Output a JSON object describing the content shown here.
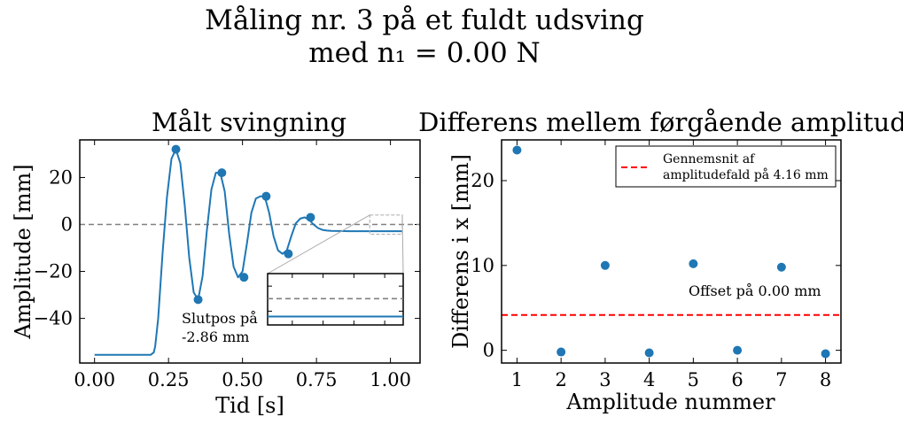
{
  "figure": {
    "title_line1": "Måling nr. 3 på et fuldt udsving",
    "title_line2": "med n₁ = 0.00 N"
  },
  "chart_data": [
    {
      "type": "line",
      "title": "Målt svingning",
      "xlabel": "Tid [s]",
      "ylabel": "Amplitude [mm]",
      "xlim": [
        -0.05,
        1.1
      ],
      "ylim": [
        -59,
        36
      ],
      "xticks": [
        0.0,
        0.25,
        0.5,
        0.75,
        1.0
      ],
      "xtick_labels": [
        "0.00",
        "0.25",
        "0.50",
        "0.75",
        "1.00"
      ],
      "yticks": [
        20,
        0,
        -20,
        -40
      ],
      "ytick_labels": [
        "20",
        "0",
        "−20",
        "−40"
      ],
      "reference_line": {
        "y": 0,
        "style": "dashed",
        "color": "#808080"
      },
      "line_color": "#1f77b4",
      "curve": {
        "x": [
          0.0,
          0.19,
          0.2,
          0.205,
          0.215,
          0.23,
          0.245,
          0.26,
          0.275,
          0.29,
          0.305,
          0.32,
          0.335,
          0.35,
          0.365,
          0.38,
          0.395,
          0.41,
          0.425,
          0.44,
          0.455,
          0.47,
          0.485,
          0.5,
          0.515,
          0.53,
          0.545,
          0.56,
          0.575,
          0.59,
          0.605,
          0.62,
          0.635,
          0.65,
          0.665,
          0.68,
          0.695,
          0.71,
          0.725,
          0.74,
          0.755,
          0.77,
          0.785,
          0.8,
          0.83,
          0.86,
          0.9,
          0.95,
          1.0,
          1.04
        ],
        "y": [
          -55.5,
          -55.5,
          -54.5,
          -52,
          -40,
          -12,
          12,
          28,
          32,
          26,
          8,
          -14,
          -29,
          -32,
          -22,
          -2,
          15,
          22,
          22,
          14,
          -4,
          -18,
          -22.5,
          -20,
          -8,
          5,
          11,
          12,
          12,
          5,
          -5,
          -11,
          -12.5,
          -11,
          -5,
          0.5,
          2.5,
          3,
          2,
          0,
          -1.5,
          -2.3,
          -2.6,
          -2.7,
          -2.8,
          -2.85,
          -2.86,
          -2.86,
          -2.86,
          -2.86
        ]
      },
      "peaks": {
        "x": [
          0.275,
          0.35,
          0.43,
          0.505,
          0.58,
          0.655,
          0.73
        ],
        "y": [
          32,
          -32,
          22,
          -22.5,
          12,
          -12.5,
          3
        ]
      },
      "annotation": [
        "Slutpos på",
        "-2.86 mm"
      ],
      "inset": {
        "xlim": [
          0.93,
          1.04
        ],
        "ylim": [
          -4.2,
          4.0
        ],
        "position": "lower right"
      }
    },
    {
      "type": "scatter",
      "title": "Differens mellem førgående amplitude",
      "xlabel": "Amplitude nummer",
      "ylabel": "Differens i x [mm]",
      "xlim": [
        0.65,
        8.35
      ],
      "ylim": [
        -1.5,
        24.8
      ],
      "xticks": [
        1,
        2,
        3,
        4,
        5,
        6,
        7,
        8
      ],
      "xtick_labels": [
        "1",
        "2",
        "3",
        "4",
        "5",
        "6",
        "7",
        "8"
      ],
      "yticks": [
        0,
        10,
        20
      ],
      "ytick_labels": [
        "0",
        "10",
        "20"
      ],
      "x": [
        1,
        2,
        3,
        4,
        5,
        6,
        7,
        8
      ],
      "y": [
        23.6,
        -0.2,
        10.0,
        -0.3,
        10.2,
        0.0,
        9.8,
        -0.4
      ],
      "marker_color": "#1f77b4",
      "mean_line": {
        "y": 4.16,
        "style": "dashed",
        "color": "#ff0000"
      },
      "legend": {
        "placement": "upper right",
        "entries": [
          {
            "label_line1": "Gennemsnit af",
            "label_line2": "amplitudefald på 4.16 mm"
          }
        ]
      },
      "annotation": "Offset på 0.00 mm"
    }
  ]
}
